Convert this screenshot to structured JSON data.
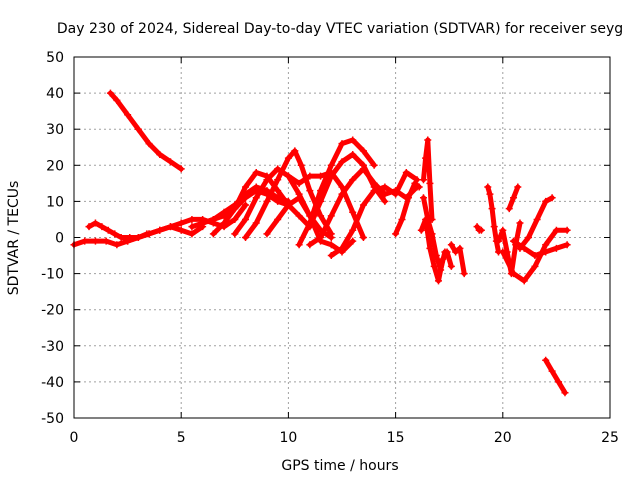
{
  "chart_data": {
    "type": "scatter",
    "title": "Day 230 of 2024, Sidereal Day-to-day VTEC variation (SDTVAR) for receiver seyg",
    "xlabel": "GPS time / hours",
    "ylabel": "SDTVAR / TECUs",
    "xlim": [
      0,
      25
    ],
    "ylim": [
      -50,
      50
    ],
    "xticks": [
      0,
      5,
      10,
      15,
      20,
      25
    ],
    "yticks": [
      -50,
      -40,
      -30,
      -20,
      -10,
      0,
      10,
      20,
      30,
      40,
      50
    ],
    "grid": true,
    "marker": "+",
    "series": [
      {
        "name": "trace-1",
        "color": "#ff0000",
        "x": [
          1.7,
          2.0,
          2.5,
          3.0,
          3.5,
          4.0,
          4.5,
          5.0
        ],
        "y": [
          40,
          38,
          34,
          30,
          26,
          23,
          21,
          19
        ]
      },
      {
        "name": "trace-2",
        "color": "#ff0000",
        "x": [
          0.0,
          0.5,
          1.0,
          1.5,
          2.0,
          2.5,
          3.0,
          3.5,
          4.0,
          4.5,
          5.0,
          5.5,
          6.0
        ],
        "y": [
          -2,
          -1,
          -1,
          -1,
          -2,
          -1,
          0,
          1,
          2,
          3,
          2,
          1,
          3
        ]
      },
      {
        "name": "trace-3",
        "color": "#ff0000",
        "x": [
          0.7,
          1.0,
          1.3,
          1.6,
          1.9,
          2.2,
          2.6,
          3.0,
          3.4
        ],
        "y": [
          3,
          4,
          3,
          2,
          1,
          0,
          0,
          0,
          1
        ]
      },
      {
        "name": "trace-4",
        "color": "#ff0000",
        "x": [
          2.5,
          3.0,
          3.5,
          4.0,
          4.5,
          5.0,
          5.5,
          6.0,
          6.5,
          7.0,
          7.5,
          8.0
        ],
        "y": [
          -1,
          0,
          1,
          2,
          3,
          4,
          5,
          5,
          4,
          3,
          5,
          9
        ]
      },
      {
        "name": "trace-5",
        "color": "#ff0000",
        "x": [
          6.0,
          6.5,
          7.0,
          7.5,
          8.0,
          8.5,
          9.0,
          9.5,
          10.0
        ],
        "y": [
          4,
          5,
          6,
          8,
          11,
          13,
          12,
          10,
          9
        ]
      },
      {
        "name": "trace-6",
        "color": "#ff0000",
        "x": [
          5.5,
          6.0,
          6.5,
          7.0,
          7.5,
          8.0,
          8.5,
          9.0,
          9.5,
          10.0
        ],
        "y": [
          3,
          4,
          5,
          7,
          9,
          12,
          14,
          13,
          11,
          10
        ]
      },
      {
        "name": "trace-7",
        "color": "#ff0000",
        "x": [
          6.5,
          7.0,
          7.5,
          8.0,
          8.5,
          9.0,
          9.5,
          10.0,
          10.5,
          11.0
        ],
        "y": [
          1,
          4,
          8,
          14,
          18,
          17,
          13,
          9,
          6,
          3
        ]
      },
      {
        "name": "trace-8",
        "color": "#ff0000",
        "x": [
          7.5,
          8.0,
          8.5,
          9.0,
          9.5,
          10.0,
          10.5,
          11.0,
          11.5,
          12.0
        ],
        "y": [
          1,
          5,
          11,
          16,
          19,
          17,
          12,
          6,
          2,
          0
        ]
      },
      {
        "name": "trace-9",
        "color": "#ff0000",
        "x": [
          8.0,
          8.5,
          9.0,
          9.5,
          10.0,
          10.3,
          10.6,
          11.0,
          11.5,
          12.0
        ],
        "y": [
          0,
          4,
          10,
          16,
          22,
          24,
          20,
          13,
          6,
          1
        ]
      },
      {
        "name": "trace-10",
        "color": "#ff0000",
        "x": [
          9.0,
          9.5,
          10.0,
          10.5,
          11.0,
          11.5,
          12.0,
          12.5,
          13.0
        ],
        "y": [
          1,
          5,
          9,
          11,
          6,
          -1,
          -2,
          -4,
          -1
        ]
      },
      {
        "name": "trace-11",
        "color": "#ff0000",
        "x": [
          10.5,
          11.0,
          11.5,
          12.0,
          12.5,
          13.0,
          13.5,
          14.0
        ],
        "y": [
          -2,
          4,
          13,
          20,
          26,
          27,
          24,
          20
        ]
      },
      {
        "name": "trace-12",
        "color": "#ff0000",
        "x": [
          11.0,
          11.5,
          12.0,
          12.5,
          13.0,
          13.5,
          14.0,
          14.5
        ],
        "y": [
          3,
          10,
          17,
          21,
          23,
          20,
          14,
          10
        ]
      },
      {
        "name": "trace-13",
        "color": "#ff0000",
        "x": [
          10.0,
          10.5,
          11.0,
          11.5,
          12.0,
          12.5,
          13.0,
          13.5
        ],
        "y": [
          17,
          15,
          17,
          17,
          18,
          14,
          7,
          0
        ]
      },
      {
        "name": "trace-14",
        "color": "#ff0000",
        "x": [
          11.0,
          11.5,
          12.0,
          12.5,
          13.0,
          13.5,
          14.0,
          14.5,
          15.0,
          15.5,
          16.0
        ],
        "y": [
          -2,
          0,
          6,
          12,
          16,
          19,
          15,
          12,
          13,
          11,
          14
        ]
      },
      {
        "name": "trace-15",
        "color": "#ff0000",
        "x": [
          12.0,
          12.5,
          13.0,
          13.5,
          14.0,
          14.5,
          15.0,
          15.5,
          16.0
        ],
        "y": [
          -5,
          -3,
          2,
          9,
          13,
          14,
          12,
          18,
          16
        ]
      },
      {
        "name": "trace-16",
        "color": "#ff0000",
        "x": [
          15.0,
          15.3,
          15.6,
          15.9,
          16.1
        ],
        "y": [
          1,
          5,
          11,
          15,
          14
        ]
      },
      {
        "name": "trace-17",
        "color": "#ff0000",
        "x": [
          16.3,
          16.4,
          16.5,
          16.6,
          16.7
        ],
        "y": [
          16,
          22,
          27,
          15,
          5
        ]
      },
      {
        "name": "trace-18",
        "color": "#ff0000",
        "x": [
          16.2,
          16.4,
          16.6,
          16.8,
          17.0,
          17.2,
          17.4,
          17.6
        ],
        "y": [
          2,
          5,
          -3,
          -8,
          -12,
          -6,
          -4,
          -8
        ]
      },
      {
        "name": "trace-19",
        "color": "#ff0000",
        "x": [
          16.3,
          16.5,
          16.7,
          16.9,
          17.1,
          17.3
        ],
        "y": [
          11,
          5,
          1,
          -5,
          -9,
          -4
        ]
      },
      {
        "name": "trace-20",
        "color": "#ff0000",
        "x": [
          17.6,
          17.8,
          18.0,
          18.2
        ],
        "y": [
          -2,
          -4,
          -3,
          -10
        ]
      },
      {
        "name": "trace-21",
        "color": "#ff0000",
        "x": [
          18.8,
          18.9,
          19.0
        ],
        "y": [
          3,
          2,
          2
        ]
      },
      {
        "name": "trace-22",
        "color": "#ff0000",
        "x": [
          19.3,
          19.4,
          19.5,
          19.6,
          19.7,
          19.8
        ],
        "y": [
          14,
          12,
          8,
          3,
          -1,
          -4
        ]
      },
      {
        "name": "trace-23",
        "color": "#ff0000",
        "x": [
          19.8,
          20.0,
          20.2,
          20.4,
          20.6,
          20.8
        ],
        "y": [
          -1,
          2,
          -4,
          -10,
          -2,
          4
        ]
      },
      {
        "name": "trace-24",
        "color": "#ff0000",
        "x": [
          20.3,
          20.5,
          20.7
        ],
        "y": [
          8,
          11,
          14
        ]
      },
      {
        "name": "trace-25",
        "color": "#ff0000",
        "x": [
          20.0,
          20.5,
          21.0,
          21.5,
          22.0,
          22.5,
          23.0
        ],
        "y": [
          -4,
          -10,
          -12,
          -8,
          -2,
          2,
          2
        ]
      },
      {
        "name": "trace-26",
        "color": "#ff0000",
        "x": [
          20.8,
          21.2,
          21.6,
          22.0,
          22.3
        ],
        "y": [
          -3,
          0,
          5,
          10,
          11
        ]
      },
      {
        "name": "trace-27",
        "color": "#ff0000",
        "x": [
          20.5,
          21.0,
          21.5,
          22.0,
          22.5,
          23.0
        ],
        "y": [
          -1,
          -3,
          -5,
          -4,
          -3,
          -2
        ]
      },
      {
        "name": "trace-28",
        "color": "#ff0000",
        "x": [
          22.0,
          22.3,
          22.6,
          22.9
        ],
        "y": [
          -34,
          -37,
          -40,
          -43
        ]
      }
    ]
  }
}
